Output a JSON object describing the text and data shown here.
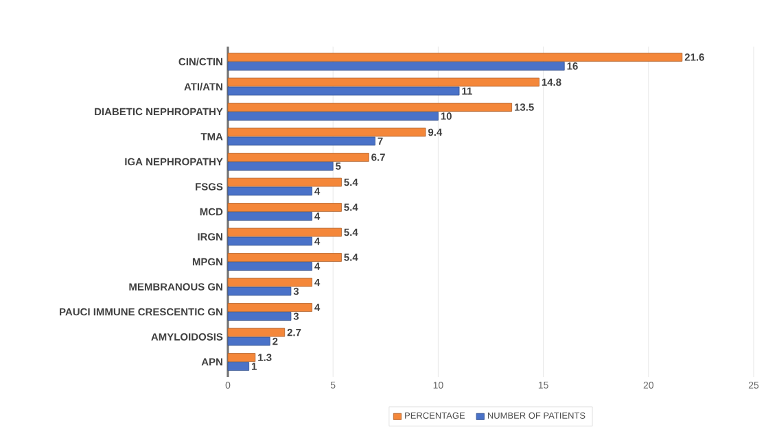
{
  "chart_data": {
    "type": "bar",
    "orientation": "horizontal",
    "categories": [
      "CIN/CTIN",
      "ATI/ATN",
      "DIABETIC NEPHROPATHY",
      "TMA",
      "IGA NEPHROPATHY",
      "FSGS",
      "MCD",
      "IRGN",
      "MPGN",
      "MEMBRANOUS GN",
      "PAUCI IMMUNE CRESCENTIC GN",
      "AMYLOIDOSIS",
      "APN"
    ],
    "series": [
      {
        "name": "PERCENTAGE",
        "color": "#f4873a",
        "values": [
          21.6,
          14.8,
          13.5,
          9.4,
          6.7,
          5.4,
          5.4,
          5.4,
          5.4,
          4,
          4,
          2.7,
          1.3
        ]
      },
      {
        "name": "NUMBER OF PATIENTS",
        "color": "#4a72c8",
        "values": [
          16,
          11,
          10,
          7,
          5,
          4,
          4,
          4,
          4,
          3,
          3,
          2,
          1
        ]
      }
    ],
    "xlim": [
      0,
      25
    ],
    "xticks": [
      0,
      5,
      10,
      15,
      20,
      25
    ],
    "grid": "x",
    "legend": "bottom",
    "data_labels": true
  }
}
